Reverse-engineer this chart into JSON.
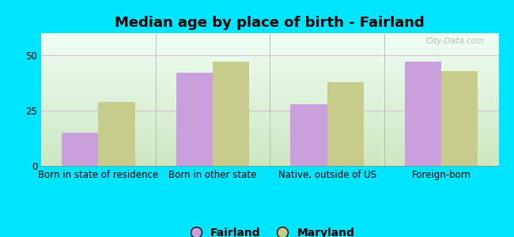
{
  "title": "Median age by place of birth - Fairland",
  "categories": [
    "Born in state of residence",
    "Born in other state",
    "Native, outside of US",
    "Foreign-born"
  ],
  "fairland_values": [
    15,
    42,
    28,
    47
  ],
  "maryland_values": [
    29,
    47,
    38,
    43
  ],
  "fairland_color": "#c9a0dc",
  "maryland_color": "#c8cc8a",
  "bar_width": 0.32,
  "ylim": [
    0,
    60
  ],
  "yticks": [
    0,
    25,
    50
  ],
  "legend_labels": [
    "Fairland",
    "Maryland"
  ],
  "bg_color_top": "#f0fdf5",
  "bg_color_bottom": "#cce8c0",
  "figure_bg": "#00e5ff",
  "title_fontsize": 13,
  "tick_fontsize": 8.5,
  "legend_fontsize": 10,
  "watermark": "City-Data.com"
}
